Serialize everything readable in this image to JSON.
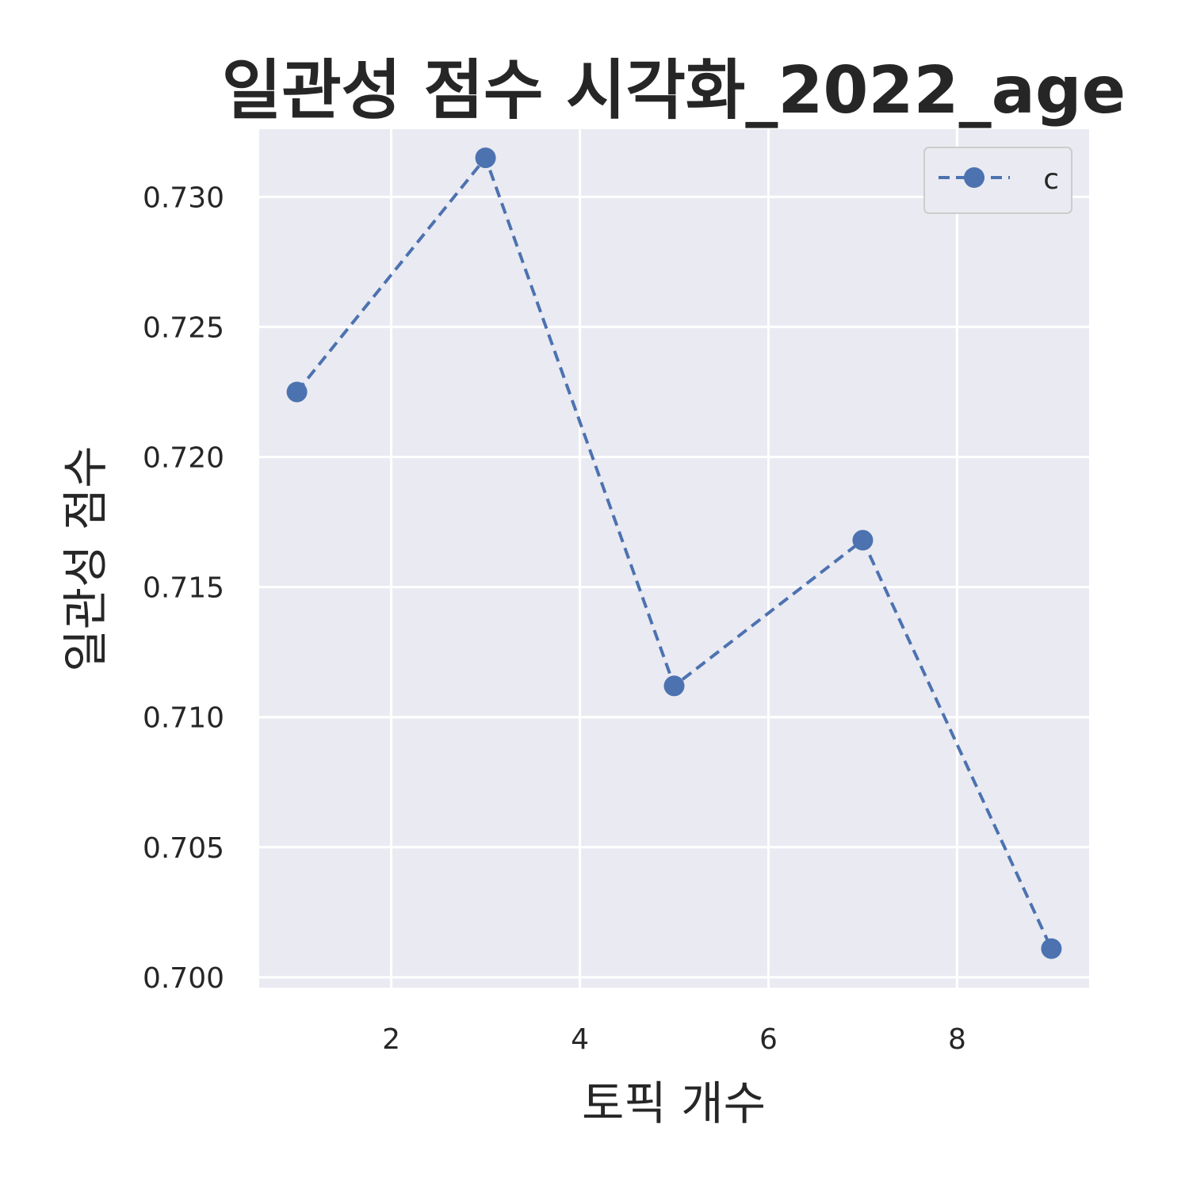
{
  "chart_data": {
    "type": "line",
    "title": "일관성 점수 시각화_2022_age",
    "xlabel": "토픽 개수",
    "ylabel": "일관성 점수",
    "x": [
      1,
      3,
      5,
      7,
      9
    ],
    "series": [
      {
        "name": "c",
        "values": [
          0.7225,
          0.7315,
          0.7112,
          0.7168,
          0.7011
        ],
        "color": "#4c72b0",
        "linestyle": "dashed",
        "marker": "circle"
      }
    ],
    "xticks": [
      2,
      4,
      6,
      8
    ],
    "xtick_labels": [
      "2",
      "4",
      "6",
      "8"
    ],
    "yticks": [
      0.7,
      0.705,
      0.71,
      0.715,
      0.72,
      0.725,
      0.73
    ],
    "ytick_labels": [
      "0.700",
      "0.705",
      "0.710",
      "0.715",
      "0.720",
      "0.725",
      "0.730"
    ],
    "xlim": [
      0.6,
      9.4
    ],
    "ylim": [
      0.6996,
      0.7326
    ],
    "grid": true,
    "legend_position": "top-right",
    "background_color": "#eaeaf2",
    "grid_color": "#ffffff"
  }
}
